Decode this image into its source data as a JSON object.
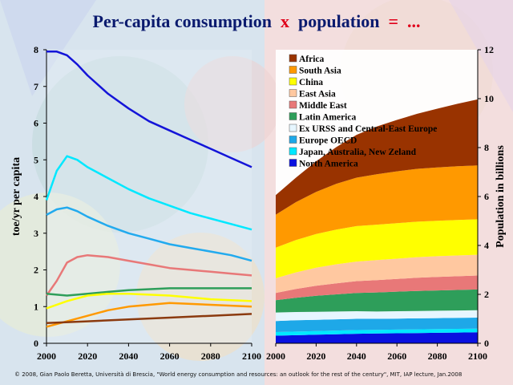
{
  "title": {
    "part1": "Per-capita consumption",
    "op1": "x",
    "part2": "population",
    "op2": "=",
    "part3": "..."
  },
  "footer": "© 2008, Gian Paolo Beretta, Università di Brescia, \"World energy consumption and resources: an outlook for the rest of the century\", MIT, IAP lecture, Jan.2008",
  "chart_data": [
    {
      "type": "line",
      "ylabel": "toe/yr per capita",
      "xlim": [
        2000,
        2100
      ],
      "ylim": [
        0,
        8
      ],
      "x_ticks": [
        2000,
        2020,
        2040,
        2060,
        2080,
        2100
      ],
      "y_ticks": [
        0,
        1,
        2,
        3,
        4,
        5,
        6,
        7,
        8
      ],
      "series": [
        {
          "name": "North America",
          "color": "#1414d8",
          "x": [
            2000,
            2005,
            2010,
            2015,
            2020,
            2030,
            2040,
            2050,
            2060,
            2070,
            2080,
            2090,
            2100
          ],
          "values": [
            7.95,
            7.95,
            7.85,
            7.6,
            7.3,
            6.8,
            6.4,
            6.05,
            5.8,
            5.55,
            5.3,
            5.05,
            4.8
          ]
        },
        {
          "name": "Japan, Australia, New Zeland",
          "color": "#00e8ff",
          "x": [
            2000,
            2005,
            2010,
            2015,
            2020,
            2030,
            2040,
            2050,
            2060,
            2070,
            2080,
            2090,
            2100
          ],
          "values": [
            3.9,
            4.7,
            5.1,
            5.0,
            4.8,
            4.5,
            4.2,
            3.95,
            3.75,
            3.55,
            3.4,
            3.25,
            3.1
          ]
        },
        {
          "name": "Europe OECD",
          "color": "#22aaee",
          "x": [
            2000,
            2005,
            2010,
            2015,
            2020,
            2030,
            2040,
            2050,
            2060,
            2070,
            2080,
            2090,
            2100
          ],
          "values": [
            3.5,
            3.65,
            3.7,
            3.6,
            3.45,
            3.2,
            3.0,
            2.85,
            2.7,
            2.6,
            2.5,
            2.4,
            2.25
          ]
        },
        {
          "name": "Middle East",
          "color": "#e87878",
          "x": [
            2000,
            2005,
            2010,
            2015,
            2020,
            2030,
            2040,
            2050,
            2060,
            2070,
            2080,
            2090,
            2100
          ],
          "values": [
            1.3,
            1.7,
            2.2,
            2.35,
            2.4,
            2.35,
            2.25,
            2.15,
            2.05,
            2.0,
            1.95,
            1.9,
            1.85
          ]
        },
        {
          "name": "Latin America",
          "color": "#2e9e5a",
          "x": [
            2000,
            2010,
            2020,
            2030,
            2040,
            2060,
            2080,
            2100
          ],
          "values": [
            1.35,
            1.3,
            1.35,
            1.4,
            1.45,
            1.5,
            1.5,
            1.5
          ]
        },
        {
          "name": "China",
          "color": "#ffff00",
          "x": [
            2000,
            2010,
            2020,
            2030,
            2040,
            2060,
            2080,
            2100
          ],
          "values": [
            0.95,
            1.15,
            1.3,
            1.35,
            1.35,
            1.3,
            1.2,
            1.15
          ]
        },
        {
          "name": "South Asia",
          "color": "#ff9900",
          "x": [
            2000,
            2010,
            2020,
            2030,
            2040,
            2050,
            2060,
            2080,
            2100
          ],
          "values": [
            0.45,
            0.6,
            0.75,
            0.9,
            1.0,
            1.05,
            1.1,
            1.05,
            1.0
          ]
        },
        {
          "name": "Africa",
          "color": "#8b3a0f",
          "x": [
            2000,
            2020,
            2040,
            2060,
            2080,
            2100
          ],
          "values": [
            0.55,
            0.6,
            0.65,
            0.7,
            0.75,
            0.8
          ]
        }
      ]
    },
    {
      "type": "area",
      "ylabel": "Population in billions",
      "xlim": [
        2000,
        2100
      ],
      "ylim": [
        0,
        12
      ],
      "x_ticks": [
        2000,
        2020,
        2040,
        2060,
        2080,
        2100
      ],
      "y_ticks": [
        0,
        2,
        4,
        6,
        8,
        10,
        12
      ],
      "legend_position": "top-left",
      "x": [
        2000,
        2010,
        2020,
        2030,
        2040,
        2050,
        2060,
        2070,
        2080,
        2090,
        2100
      ],
      "series": [
        {
          "name": "North America",
          "color": "#0a10e0",
          "values": [
            0.31,
            0.33,
            0.35,
            0.37,
            0.39,
            0.4,
            0.41,
            0.42,
            0.43,
            0.44,
            0.45
          ]
        },
        {
          "name": "Japan, Australia, New Zeland",
          "color": "#00e8ff",
          "values": [
            0.15,
            0.15,
            0.15,
            0.15,
            0.15,
            0.15,
            0.15,
            0.15,
            0.15,
            0.15,
            0.15
          ]
        },
        {
          "name": "Europe OECD",
          "color": "#1ea8e8",
          "values": [
            0.45,
            0.46,
            0.46,
            0.46,
            0.46,
            0.45,
            0.45,
            0.45,
            0.45,
            0.45,
            0.45
          ]
        },
        {
          "name": "Ex URSS and Central-East Europe",
          "color": "#e6f6ff",
          "values": [
            0.35,
            0.34,
            0.33,
            0.32,
            0.31,
            0.3,
            0.3,
            0.3,
            0.3,
            0.3,
            0.3
          ]
        },
        {
          "name": "Latin America",
          "color": "#2e9e5a",
          "values": [
            0.5,
            0.58,
            0.65,
            0.7,
            0.75,
            0.78,
            0.8,
            0.82,
            0.83,
            0.84,
            0.85
          ]
        },
        {
          "name": "Middle East",
          "color": "#e87878",
          "values": [
            0.3,
            0.36,
            0.41,
            0.45,
            0.48,
            0.5,
            0.52,
            0.54,
            0.55,
            0.56,
            0.57
          ]
        },
        {
          "name": "East Asia",
          "color": "#ffc8a0",
          "values": [
            0.6,
            0.68,
            0.74,
            0.78,
            0.8,
            0.82,
            0.83,
            0.84,
            0.85,
            0.85,
            0.85
          ]
        },
        {
          "name": "China",
          "color": "#ffff00",
          "values": [
            1.25,
            1.32,
            1.38,
            1.42,
            1.45,
            1.45,
            1.45,
            1.45,
            1.45,
            1.45,
            1.45
          ]
        },
        {
          "name": "South Asia",
          "color": "#ff9900",
          "values": [
            1.35,
            1.55,
            1.72,
            1.87,
            1.98,
            2.06,
            2.12,
            2.16,
            2.18,
            2.2,
            2.2
          ]
        },
        {
          "name": "Africa",
          "color": "#993300",
          "values": [
            0.8,
            1.0,
            1.25,
            1.5,
            1.75,
            1.95,
            2.1,
            2.25,
            2.4,
            2.55,
            2.7
          ]
        }
      ],
      "legend_order": [
        "Africa",
        "South Asia",
        "China",
        "East Asia",
        "Middle East",
        "Latin America",
        "Ex URSS and Central-East Europe",
        "Europe OECD",
        "Japan, Australia, New Zeland",
        "North America"
      ]
    }
  ]
}
